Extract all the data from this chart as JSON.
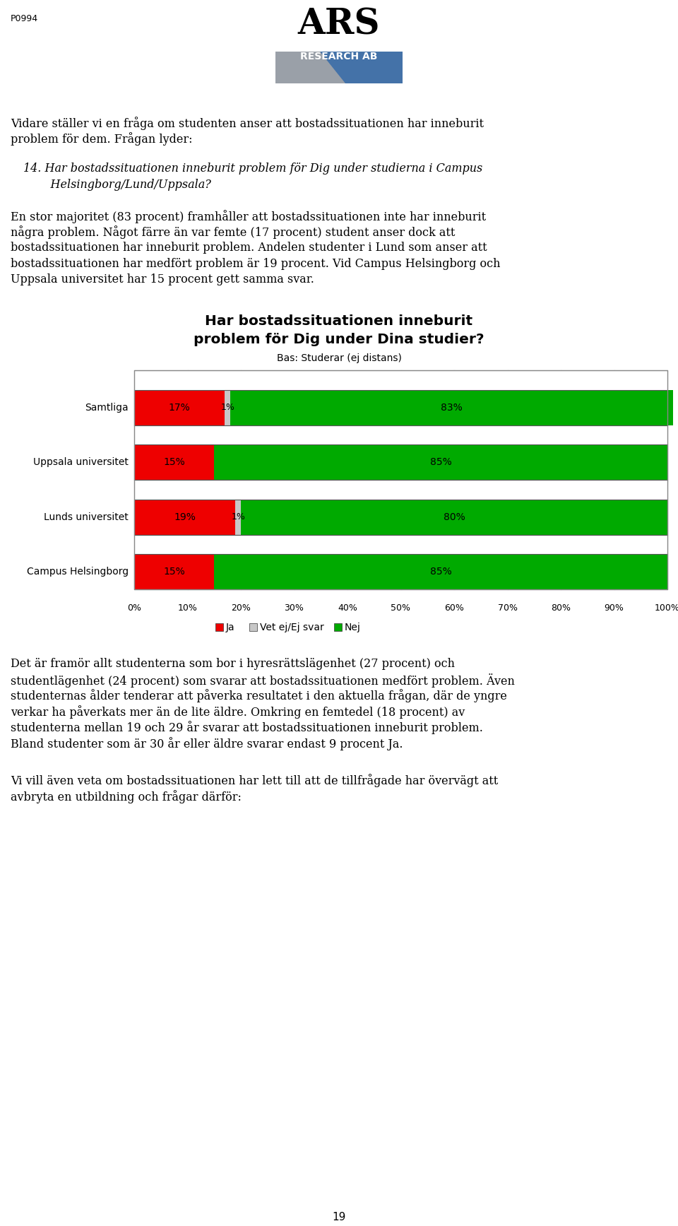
{
  "page_id": "P0994",
  "page_number": "19",
  "chart_title_line1": "Har bostadssituationen inneburit",
  "chart_title_line2": "problem för Dig under Dina studier?",
  "chart_subtitle": "Bas: Studerar (ej distans)",
  "categories": [
    "Samtliga",
    "Uppsala universitet",
    "Lunds universitet",
    "Campus Helsingborg"
  ],
  "ja_values": [
    17,
    15,
    19,
    15
  ],
  "vet_ej_values": [
    1,
    0,
    1,
    0
  ],
  "nej_values": [
    83,
    85,
    80,
    85
  ],
  "ja_color": "#ee0000",
  "vet_ej_color": "#c8c8c8",
  "nej_color": "#00aa00",
  "bar_labels_ja": [
    "17%",
    "15%",
    "19%",
    "15%"
  ],
  "bar_labels_vet_ej": [
    "1%",
    "",
    "1%",
    ""
  ],
  "bar_labels_nej": [
    "83%",
    "85%",
    "80%",
    "85%"
  ],
  "legend_labels": [
    "Ja",
    "Vet ej/Ej svar",
    "Nej"
  ],
  "para1_line1": "Vidare ställer vi en fråga om studenten anser att bostadssituationen har inneburit",
  "para1_line2": "problem för dem. Frågan lyder:",
  "para2a": "14. Har bostadssituationen inneburit problem för Dig under studierna i Campus",
  "para2b": "    Helsingborg/Lund/Uppsala?",
  "para3_lines": [
    "En stor majoritet (83 procent) framhåller att bostadssituationen inte har inneburit",
    "några problem. Något färre än var femte (17 procent) student anser dock att",
    "bostadssituationen har inneburit problem. Andelen studenter i Lund som anser att",
    "bostadssituationen har medfört problem är 19 procent. Vid Campus Helsingborg och",
    "Uppsala universitet har 15 procent gett samma svar."
  ],
  "para4_lines": [
    "Det är framör allt studenterna som bor i hyresrättslägenhet (27 procent) och",
    "studentlägenhet (24 procent) som svarar att bostadssituationen medfört problem. Även",
    "studenternas ålder tenderar att påverka resultatet i den aktuella frågan, där de yngre",
    "verkar ha påverkats mer än de lite äldre. Omkring en femtedel (18 procent) av",
    "studenterna mellan 19 och 29 år svarar att bostadssituationen inneburit problem.",
    "Bland studenter som är 30 år eller äldre svarar endast 9 procent Ja."
  ],
  "para5_lines": [
    "Vi vill även veta om bostadssituationen har lett till att de tillfrågade har övervägt att",
    "avbryta en utbildning och frågar därför:"
  ],
  "background_color": "#ffffff",
  "text_color": "#000000",
  "grid_color": "#bbbbbb",
  "logo_blue": "#4472a8",
  "logo_gray": "#9aa0a8"
}
